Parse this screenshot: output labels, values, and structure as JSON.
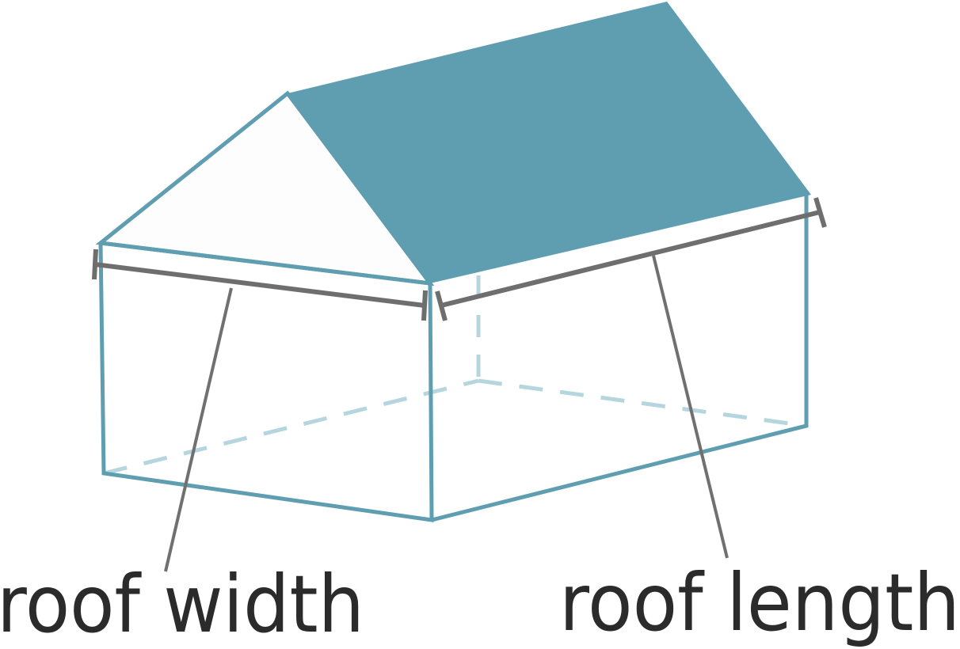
{
  "labels": {
    "width": "roof width",
    "length": "roof length"
  },
  "colors": {
    "outline": "#5f9eb0",
    "roof_fill": "#5f9eb0",
    "hidden_edges": "#b5d6df",
    "dimension": "#6e6e6e",
    "leader": "#707070",
    "text": "#2b2b2b",
    "gable_fill": "#fdfdfd"
  }
}
